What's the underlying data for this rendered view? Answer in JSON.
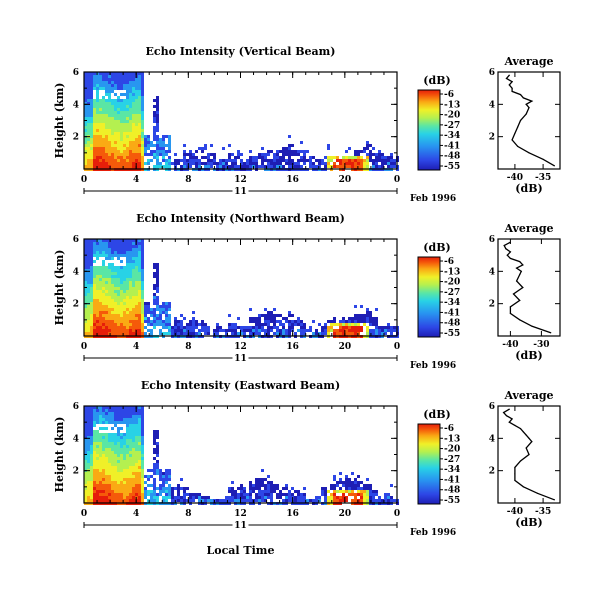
{
  "chart_data": [
    {
      "type": "heatmap",
      "title": "Echo Intensity (Vertical Beam)",
      "ylabel": "Height (km)",
      "yticks": [
        "2",
        "4",
        "6"
      ],
      "ylim": [
        0,
        6
      ],
      "xticks": [
        "0",
        "4",
        "8",
        "12",
        "16",
        "20",
        "0"
      ],
      "xlim": [
        0,
        24
      ],
      "day_label": "11",
      "date_label": "Feb 1996",
      "colorbar": {
        "label": "(dB)",
        "ticks": [
          "-6",
          "-13",
          "-20",
          "-27",
          "-34",
          "-41",
          "-48",
          "-55"
        ]
      },
      "profile": {
        "title": "Average",
        "xlabel": "(dB)",
        "xticks": [
          "-40",
          "-35"
        ],
        "xlim": [
          -43,
          -32
        ],
        "yticks": [
          "2",
          "4",
          "6"
        ],
        "height_km": [
          0.2,
          0.6,
          1.0,
          1.4,
          1.8,
          2.2,
          2.6,
          3.0,
          3.4,
          3.8,
          4.0,
          4.2,
          4.4,
          4.6,
          4.8,
          5.0,
          5.2,
          5.4,
          5.6,
          5.8
        ],
        "db": [
          -33,
          -35,
          -37.5,
          -39.5,
          -40.5,
          -40,
          -39.5,
          -39,
          -38,
          -37.5,
          -38,
          -37,
          -38.5,
          -39,
          -40.5,
          -40.5,
          -41,
          -40.5,
          -41.5,
          -41
        ]
      }
    },
    {
      "type": "heatmap",
      "title": "Echo Intensity (Northward Beam)",
      "ylabel": "Height (km)",
      "yticks": [
        "2",
        "4",
        "6"
      ],
      "ylim": [
        0,
        6
      ],
      "xticks": [
        "0",
        "4",
        "8",
        "12",
        "16",
        "20",
        "0"
      ],
      "xlim": [
        0,
        24
      ],
      "day_label": "11",
      "date_label": "Feb 1996",
      "colorbar": {
        "label": "(dB)",
        "ticks": [
          "-6",
          "-13",
          "-20",
          "-27",
          "-34",
          "-41",
          "-48",
          "-55"
        ]
      },
      "profile": {
        "title": "Average",
        "xlabel": "(dB)",
        "xticks": [
          "-40",
          "-30"
        ],
        "xlim": [
          -44,
          -24
        ],
        "yticks": [
          "2",
          "4",
          "6"
        ],
        "height_km": [
          0.2,
          0.6,
          1.0,
          1.4,
          1.8,
          2.2,
          2.6,
          3.0,
          3.4,
          3.8,
          4.0,
          4.2,
          4.4,
          4.6,
          4.8,
          5.0,
          5.2,
          5.4,
          5.6,
          5.8
        ],
        "db": [
          -27,
          -33,
          -37,
          -40,
          -40,
          -37,
          -39,
          -36,
          -38,
          -37,
          -36.5,
          -38,
          -36,
          -37,
          -40,
          -41,
          -40,
          -41.5,
          -42,
          -40
        ]
      }
    },
    {
      "type": "heatmap",
      "title": "Echo Intensity (Eastward Beam)",
      "ylabel": "Height (km)",
      "yticks": [
        "2",
        "4",
        "6"
      ],
      "ylim": [
        0,
        6
      ],
      "xticks": [
        "0",
        "4",
        "8",
        "12",
        "16",
        "20",
        "0"
      ],
      "xlim": [
        0,
        24
      ],
      "day_label": "11",
      "date_label": "Feb 1996",
      "xlabel": "Local Time",
      "colorbar": {
        "label": "(dB)",
        "ticks": [
          "-6",
          "-13",
          "-20",
          "-27",
          "-34",
          "-41",
          "-48",
          "-55"
        ]
      },
      "profile": {
        "title": "Average",
        "xlabel": "(dB)",
        "xticks": [
          "-40",
          "-35"
        ],
        "xlim": [
          -43,
          -32
        ],
        "yticks": [
          "2",
          "4",
          "6"
        ],
        "height_km": [
          0.2,
          0.6,
          1.0,
          1.4,
          1.8,
          2.2,
          2.6,
          3.0,
          3.4,
          3.8,
          4.0,
          4.2,
          4.4,
          4.6,
          4.8,
          5.0,
          5.2,
          5.4,
          5.6,
          5.8
        ],
        "db": [
          -33,
          -36,
          -38.5,
          -40,
          -40,
          -40,
          -39,
          -37.5,
          -38,
          -37,
          -37.5,
          -38,
          -38.5,
          -39,
          -40,
          -41,
          -40.5,
          -41.5,
          -42,
          -41
        ]
      }
    }
  ],
  "colors": {
    "scale": [
      "#1e1eb4",
      "#2d46e6",
      "#2896f0",
      "#28d2e6",
      "#5ae6a5",
      "#b4f050",
      "#f0f028",
      "#faaa14",
      "#f55a0a",
      "#e61e0a"
    ]
  }
}
